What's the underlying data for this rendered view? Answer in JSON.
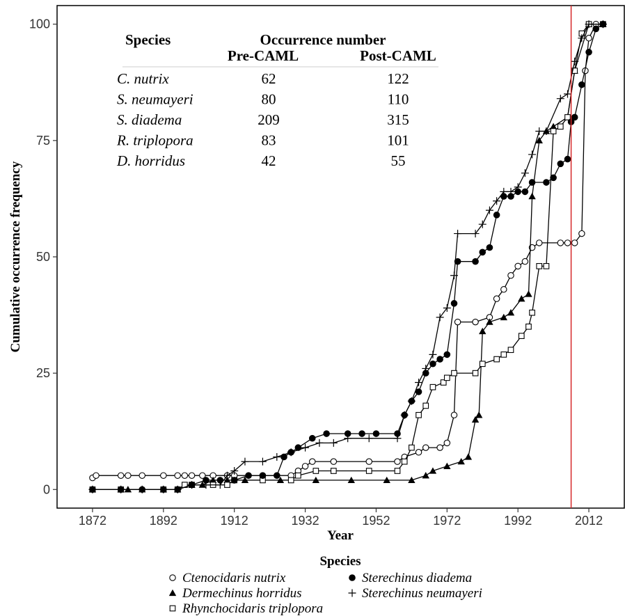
{
  "chart_data": {
    "type": "line",
    "xlabel": "Year",
    "ylabel": "Cumulative occurrence frequency",
    "xlim": [
      1862,
      2022
    ],
    "ylim": [
      -4,
      104
    ],
    "xticks": [
      1872,
      1892,
      1912,
      1932,
      1952,
      1972,
      1992,
      2012
    ],
    "yticks": [
      0,
      25,
      50,
      75,
      100
    ],
    "grid": false,
    "reference_line": {
      "x": 2007,
      "color": "#d62728"
    },
    "legend": {
      "title": "Species",
      "placement": "bottom"
    },
    "table": {
      "col_species": "Species",
      "col_occurrence": "Occurrence number",
      "col_pre": "Pre-CAML",
      "col_post": "Post-CAML",
      "rows": [
        {
          "species": "C. nutrix",
          "pre": "62",
          "post": "122"
        },
        {
          "species": "S. neumayeri",
          "pre": "80",
          "post": "110"
        },
        {
          "species": "S. diadema",
          "pre": "209",
          "post": "315"
        },
        {
          "species": "R. triplopora",
          "pre": "83",
          "post": "101"
        },
        {
          "species": "D. horridus",
          "pre": "42",
          "post": "55"
        }
      ]
    },
    "series": [
      {
        "name": "Ctenocidaris nutrix",
        "marker": "open-circle",
        "points": [
          [
            1872,
            2.5
          ],
          [
            1873,
            3
          ],
          [
            1880,
            3
          ],
          [
            1882,
            3
          ],
          [
            1886,
            3
          ],
          [
            1892,
            3
          ],
          [
            1896,
            3
          ],
          [
            1898,
            3
          ],
          [
            1900,
            3
          ],
          [
            1903,
            3
          ],
          [
            1906,
            3
          ],
          [
            1910,
            3
          ],
          [
            1912,
            3
          ],
          [
            1920,
            3
          ],
          [
            1928,
            3
          ],
          [
            1930,
            4
          ],
          [
            1932,
            5
          ],
          [
            1934,
            6
          ],
          [
            1940,
            6
          ],
          [
            1950,
            6
          ],
          [
            1958,
            6
          ],
          [
            1960,
            7
          ],
          [
            1964,
            8
          ],
          [
            1966,
            9
          ],
          [
            1970,
            9
          ],
          [
            1972,
            10
          ],
          [
            1974,
            16
          ],
          [
            1975,
            36
          ],
          [
            1980,
            36
          ],
          [
            1984,
            37
          ],
          [
            1986,
            41
          ],
          [
            1988,
            43
          ],
          [
            1990,
            46
          ],
          [
            1992,
            48
          ],
          [
            1994,
            49
          ],
          [
            1996,
            52
          ],
          [
            1998,
            53
          ],
          [
            2004,
            53
          ],
          [
            2006,
            53
          ],
          [
            2008,
            53
          ],
          [
            2010,
            55
          ],
          [
            2011,
            90
          ],
          [
            2012,
            97
          ],
          [
            2014,
            100
          ],
          [
            2016,
            100
          ]
        ]
      },
      {
        "name": "Dermechinus horridus",
        "marker": "filled-triangle",
        "points": [
          [
            1872,
            0
          ],
          [
            1880,
            0
          ],
          [
            1882,
            0
          ],
          [
            1886,
            0
          ],
          [
            1892,
            0
          ],
          [
            1896,
            0
          ],
          [
            1900,
            1
          ],
          [
            1903,
            1
          ],
          [
            1906,
            2
          ],
          [
            1910,
            2
          ],
          [
            1915,
            2
          ],
          [
            1925,
            2
          ],
          [
            1935,
            2
          ],
          [
            1945,
            2
          ],
          [
            1955,
            2
          ],
          [
            1962,
            2
          ],
          [
            1966,
            3
          ],
          [
            1968,
            4
          ],
          [
            1972,
            5
          ],
          [
            1976,
            6
          ],
          [
            1978,
            7
          ],
          [
            1980,
            15
          ],
          [
            1981,
            16
          ],
          [
            1982,
            34
          ],
          [
            1984,
            36
          ],
          [
            1988,
            37
          ],
          [
            1990,
            38
          ],
          [
            1993,
            41
          ],
          [
            1995,
            42
          ],
          [
            1996,
            63
          ],
          [
            1998,
            75
          ],
          [
            2000,
            77
          ],
          [
            2002,
            78
          ],
          [
            2006,
            80
          ],
          [
            2008,
            90
          ],
          [
            2012,
            100
          ],
          [
            2016,
            100
          ]
        ]
      },
      {
        "name": "Rhynchocidaris triplopora",
        "marker": "open-square",
        "points": [
          [
            1872,
            0
          ],
          [
            1880,
            0
          ],
          [
            1892,
            0
          ],
          [
            1896,
            0
          ],
          [
            1898,
            1
          ],
          [
            1900,
            1
          ],
          [
            1906,
            1
          ],
          [
            1910,
            1
          ],
          [
            1912,
            2
          ],
          [
            1920,
            2
          ],
          [
            1928,
            2
          ],
          [
            1930,
            3
          ],
          [
            1935,
            4
          ],
          [
            1940,
            4
          ],
          [
            1950,
            4
          ],
          [
            1958,
            4
          ],
          [
            1960,
            6
          ],
          [
            1962,
            9
          ],
          [
            1964,
            16
          ],
          [
            1966,
            18
          ],
          [
            1968,
            22
          ],
          [
            1971,
            23
          ],
          [
            1972,
            24
          ],
          [
            1974,
            25
          ],
          [
            1980,
            25
          ],
          [
            1982,
            27
          ],
          [
            1986,
            28
          ],
          [
            1988,
            29
          ],
          [
            1990,
            30
          ],
          [
            1993,
            33
          ],
          [
            1995,
            35
          ],
          [
            1996,
            38
          ],
          [
            1998,
            48
          ],
          [
            2000,
            48
          ],
          [
            2002,
            77
          ],
          [
            2004,
            78
          ],
          [
            2006,
            80
          ],
          [
            2008,
            90
          ],
          [
            2010,
            98
          ],
          [
            2012,
            100
          ],
          [
            2016,
            100
          ]
        ]
      },
      {
        "name": "Sterechinus diadema",
        "marker": "filled-circle",
        "points": [
          [
            1872,
            0
          ],
          [
            1880,
            0
          ],
          [
            1886,
            0
          ],
          [
            1892,
            0
          ],
          [
            1896,
            0
          ],
          [
            1900,
            1
          ],
          [
            1904,
            2
          ],
          [
            1908,
            2
          ],
          [
            1912,
            2
          ],
          [
            1916,
            3
          ],
          [
            1920,
            3
          ],
          [
            1924,
            3
          ],
          [
            1926,
            7
          ],
          [
            1928,
            8
          ],
          [
            1930,
            9
          ],
          [
            1934,
            11
          ],
          [
            1938,
            12
          ],
          [
            1944,
            12
          ],
          [
            1948,
            12
          ],
          [
            1952,
            12
          ],
          [
            1958,
            12
          ],
          [
            1960,
            16
          ],
          [
            1962,
            19
          ],
          [
            1964,
            21
          ],
          [
            1966,
            25
          ],
          [
            1968,
            27
          ],
          [
            1970,
            28
          ],
          [
            1972,
            29
          ],
          [
            1974,
            40
          ],
          [
            1975,
            49
          ],
          [
            1980,
            49
          ],
          [
            1982,
            51
          ],
          [
            1984,
            52
          ],
          [
            1986,
            59
          ],
          [
            1988,
            63
          ],
          [
            1990,
            63
          ],
          [
            1992,
            64
          ],
          [
            1994,
            64
          ],
          [
            1996,
            66
          ],
          [
            2000,
            66
          ],
          [
            2002,
            67
          ],
          [
            2004,
            70
          ],
          [
            2006,
            71
          ],
          [
            2007,
            79
          ],
          [
            2008,
            80
          ],
          [
            2010,
            87
          ],
          [
            2012,
            94
          ],
          [
            2014,
            99
          ],
          [
            2016,
            100
          ]
        ]
      },
      {
        "name": "Sterechinus neumayeri",
        "marker": "plus",
        "points": [
          [
            1872,
            0
          ],
          [
            1880,
            0
          ],
          [
            1886,
            0
          ],
          [
            1892,
            0
          ],
          [
            1896,
            0
          ],
          [
            1900,
            1
          ],
          [
            1904,
            1
          ],
          [
            1908,
            1
          ],
          [
            1910,
            3
          ],
          [
            1912,
            4
          ],
          [
            1915,
            6
          ],
          [
            1920,
            6
          ],
          [
            1924,
            7
          ],
          [
            1928,
            8
          ],
          [
            1932,
            9
          ],
          [
            1936,
            10
          ],
          [
            1940,
            10
          ],
          [
            1944,
            11
          ],
          [
            1950,
            11
          ],
          [
            1958,
            11
          ],
          [
            1960,
            16
          ],
          [
            1962,
            19
          ],
          [
            1964,
            23
          ],
          [
            1966,
            26
          ],
          [
            1968,
            29
          ],
          [
            1970,
            37
          ],
          [
            1972,
            39
          ],
          [
            1974,
            46
          ],
          [
            1975,
            55
          ],
          [
            1980,
            55
          ],
          [
            1982,
            57
          ],
          [
            1984,
            60
          ],
          [
            1986,
            62
          ],
          [
            1988,
            64
          ],
          [
            1990,
            64
          ],
          [
            1992,
            65
          ],
          [
            1994,
            68
          ],
          [
            1996,
            72
          ],
          [
            1998,
            77
          ],
          [
            2000,
            77
          ],
          [
            2004,
            84
          ],
          [
            2006,
            85
          ],
          [
            2008,
            92
          ],
          [
            2010,
            97
          ],
          [
            2012,
            100
          ],
          [
            2016,
            100
          ]
        ]
      }
    ]
  }
}
